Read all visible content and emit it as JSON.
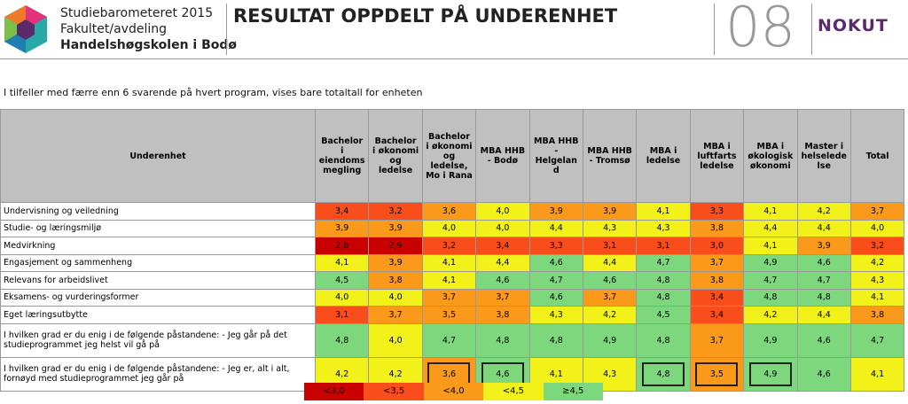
{
  "header": {
    "title": "Studiebarometeret 2015",
    "subtitle": "Fakultet/avdeling",
    "unit": "Handelshøgskolen i Bodø",
    "heading": "RESULTAT OPPDELT PÅ UNDERENHET",
    "page": "08",
    "logo": "NOKUT"
  },
  "note": "I tilfeller med færre enn 6 svarende på hvert program, vises bare totaltall for enheten",
  "table": {
    "columns": [
      "Underenhet",
      "Bachelor i eiendoms megling",
      "Bachelor i økonomi og ledelse",
      "Bachelor i økonomi og ledelse, Mo i Rana",
      "MBA HHB - Bodø",
      "MBA HHB - Helgeland",
      "MBA HHB - Tromsø",
      "MBA i ledelse",
      "MBA i luftfarts ledelse",
      "MBA i økologisk økonomi",
      "Master i helseledelse",
      "Total"
    ],
    "rows": [
      {
        "label": "Undervisning og veiledning",
        "values": [
          "3,4",
          "3,2",
          "3,6",
          "4,0",
          "3,9",
          "3,9",
          "4,1",
          "3,3",
          "4,1",
          "4,2",
          "3,7"
        ]
      },
      {
        "label": "Studie- og læringsmiljø",
        "values": [
          "3,9",
          "3,9",
          "4,0",
          "4,0",
          "4,4",
          "4,3",
          "4,3",
          "3,8",
          "4,4",
          "4,4",
          "4,0"
        ]
      },
      {
        "label": "Medvirkning",
        "values": [
          "2,6",
          "2,9",
          "3,2",
          "3,4",
          "3,3",
          "3,1",
          "3,1",
          "3,0",
          "4,1",
          "3,9",
          "3,2"
        ]
      },
      {
        "label": "Engasjement og sammenheng",
        "values": [
          "4,1",
          "3,9",
          "4,1",
          "4,4",
          "4,6",
          "4,4",
          "4,7",
          "3,7",
          "4,9",
          "4,6",
          "4,2"
        ]
      },
      {
        "label": "Relevans for arbeidslivet",
        "values": [
          "4,5",
          "3,8",
          "4,1",
          "4,6",
          "4,7",
          "4,6",
          "4,8",
          "3,8",
          "4,7",
          "4,7",
          "4,3"
        ]
      },
      {
        "label": "Eksamens- og vurderingsformer",
        "values": [
          "4,0",
          "4,0",
          "3,7",
          "3,7",
          "4,6",
          "3,7",
          "4,8",
          "3,4",
          "4,8",
          "4,8",
          "4,1"
        ]
      },
      {
        "label": "Eget læringsutbytte",
        "values": [
          "3,1",
          "3,7",
          "3,5",
          "3,8",
          "4,3",
          "4,2",
          "4,5",
          "3,4",
          "4,2",
          "4,4",
          "3,8"
        ]
      },
      {
        "label": "I hvilken grad er du enig i de følgende påstandene: - Jeg går på det studieprogrammet jeg helst vil gå på",
        "values": [
          "4,8",
          "4,0",
          "4,7",
          "4,8",
          "4,8",
          "4,9",
          "4,8",
          "3,7",
          "4,9",
          "4,6",
          "4,7"
        ]
      },
      {
        "label": "I hvilken grad er du enig i de følgende påstandene: - Jeg er, alt i alt, fornøyd med studieprogrammet jeg går på",
        "values": [
          "4,2",
          "4,2",
          "3,6",
          "4,6",
          "4,1",
          "4,3",
          "4,8",
          "3,5",
          "4,9",
          "4,6",
          "4,1"
        ],
        "highlighted": [
          2,
          3,
          6,
          7,
          8
        ]
      }
    ]
  },
  "legend": [
    {
      "value": 3.0,
      "label": "<3,0",
      "color": "#c80000"
    },
    {
      "value": 3.5,
      "label": "<3,5",
      "color": "#f94d1c"
    },
    {
      "value": 4.0,
      "label": "<4,0",
      "color": "#fb9a1a"
    },
    {
      "value": 4.5,
      "label": "<4,5",
      "color": "#f2f21a"
    },
    {
      "value": 4.5,
      "label": "≥4,5",
      "color": "#7dd87d"
    }
  ]
}
